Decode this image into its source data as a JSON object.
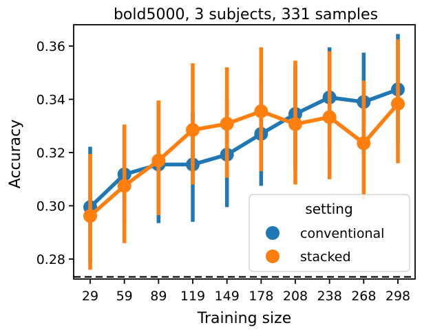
{
  "chart_data": {
    "type": "line",
    "title": "bold5000, 3 subjects, 331 samples",
    "xlabel": "Training size",
    "ylabel": "Accuracy",
    "categories": [
      "29",
      "59",
      "89",
      "119",
      "149",
      "178",
      "208",
      "238",
      "268",
      "298"
    ],
    "ylim": [
      0.2725,
      0.368
    ],
    "yticks": [
      0.28,
      0.3,
      0.32,
      0.34,
      0.36
    ],
    "ytick_labels": [
      "0.28",
      "0.30",
      "0.32",
      "0.34",
      "0.36"
    ],
    "chance_level": 0.2733,
    "grid": false,
    "legend": {
      "title": "setting",
      "position": "lower-right"
    },
    "series": [
      {
        "name": "conventional",
        "color": "#1f77b4",
        "values": [
          0.2995,
          0.3118,
          0.3155,
          0.3155,
          0.3192,
          0.327,
          0.3345,
          0.3407,
          0.339,
          0.3437
        ],
        "ci_low": [
          0.2785,
          0.2935,
          0.2935,
          0.294,
          0.2995,
          0.3075,
          0.3135,
          0.3225,
          0.3205,
          0.3235
        ],
        "ci_high": [
          0.3222,
          0.33,
          0.3395,
          0.335,
          0.341,
          0.3475,
          0.353,
          0.3595,
          0.3575,
          0.3645
        ]
      },
      {
        "name": "stacked",
        "color": "#ff7f0e",
        "values": [
          0.2962,
          0.3075,
          0.317,
          0.3285,
          0.3308,
          0.3355,
          0.3307,
          0.3333,
          0.3235,
          0.3383
        ],
        "ci_low": [
          0.276,
          0.286,
          0.2965,
          0.308,
          0.3105,
          0.313,
          0.308,
          0.31,
          0.3025,
          0.316
        ],
        "ci_high": [
          0.3195,
          0.3305,
          0.3395,
          0.3535,
          0.352,
          0.3595,
          0.3545,
          0.358,
          0.347,
          0.3625
        ]
      }
    ]
  }
}
